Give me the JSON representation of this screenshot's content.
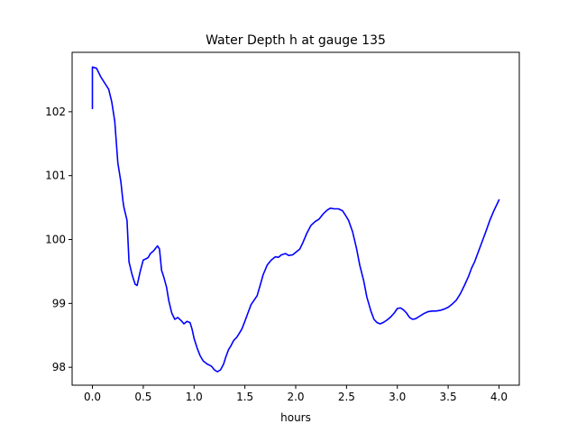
{
  "chart_data": {
    "type": "line",
    "title": "Water Depth h at gauge 135",
    "xlabel": "hours",
    "ylabel": "",
    "xlim": [
      -0.2,
      4.2
    ],
    "ylim": [
      97.72,
      102.93
    ],
    "xticks": [
      0.0,
      0.5,
      1.0,
      1.5,
      2.0,
      2.5,
      3.0,
      3.5,
      4.0
    ],
    "xtick_labels": [
      "0.0",
      "0.5",
      "1.0",
      "1.5",
      "2.0",
      "2.5",
      "3.0",
      "3.5",
      "4.0"
    ],
    "yticks": [
      98,
      99,
      100,
      101,
      102
    ],
    "ytick_labels": [
      "98",
      "99",
      "100",
      "101",
      "102"
    ],
    "grid": false,
    "series": [
      {
        "color": "#0000ff",
        "x": [
          0.0,
          0.0,
          0.04,
          0.08,
          0.12,
          0.16,
          0.19,
          0.22,
          0.25,
          0.28,
          0.3,
          0.31,
          0.34,
          0.36,
          0.39,
          0.42,
          0.44,
          0.47,
          0.5,
          0.53,
          0.55,
          0.57,
          0.6,
          0.64,
          0.66,
          0.68,
          0.7,
          0.73,
          0.75,
          0.78,
          0.81,
          0.84,
          0.88,
          0.9,
          0.93,
          0.96,
          0.98,
          1.0,
          1.03,
          1.06,
          1.09,
          1.13,
          1.17,
          1.2,
          1.23,
          1.26,
          1.29,
          1.31,
          1.34,
          1.36,
          1.39,
          1.42,
          1.44,
          1.47,
          1.5,
          1.53,
          1.56,
          1.59,
          1.62,
          1.65,
          1.68,
          1.72,
          1.76,
          1.8,
          1.83,
          1.86,
          1.9,
          1.93,
          1.97,
          2.0,
          2.04,
          2.07,
          2.11,
          2.15,
          2.19,
          2.23,
          2.27,
          2.31,
          2.34,
          2.38,
          2.42,
          2.46,
          2.49,
          2.52,
          2.56,
          2.6,
          2.63,
          2.67,
          2.7,
          2.74,
          2.77,
          2.8,
          2.83,
          2.86,
          2.89,
          2.93,
          2.97,
          3.0,
          3.03,
          3.06,
          3.09,
          3.12,
          3.15,
          3.18,
          3.22,
          3.26,
          3.3,
          3.34,
          3.38,
          3.42,
          3.46,
          3.5,
          3.54,
          3.58,
          3.62,
          3.66,
          3.7,
          3.73,
          3.76,
          3.79,
          3.83,
          3.87,
          3.91,
          3.95,
          4.0
        ],
        "y": [
          102.05,
          102.7,
          102.68,
          102.55,
          102.45,
          102.35,
          102.15,
          101.85,
          101.2,
          100.9,
          100.6,
          100.5,
          100.3,
          99.65,
          99.45,
          99.3,
          99.28,
          99.5,
          99.68,
          99.7,
          99.72,
          99.78,
          99.82,
          99.9,
          99.85,
          99.52,
          99.42,
          99.25,
          99.05,
          98.85,
          98.75,
          98.78,
          98.72,
          98.68,
          98.72,
          98.7,
          98.6,
          98.45,
          98.3,
          98.18,
          98.1,
          98.05,
          98.02,
          97.96,
          97.93,
          97.96,
          98.05,
          98.15,
          98.28,
          98.33,
          98.42,
          98.47,
          98.52,
          98.6,
          98.72,
          98.85,
          98.98,
          99.05,
          99.12,
          99.28,
          99.45,
          99.6,
          99.68,
          99.73,
          99.72,
          99.76,
          99.78,
          99.75,
          99.76,
          99.8,
          99.85,
          99.95,
          100.1,
          100.22,
          100.28,
          100.32,
          100.4,
          100.46,
          100.49,
          100.48,
          100.48,
          100.45,
          100.38,
          100.3,
          100.12,
          99.85,
          99.6,
          99.35,
          99.1,
          98.88,
          98.75,
          98.7,
          98.68,
          98.7,
          98.73,
          98.78,
          98.85,
          98.92,
          98.93,
          98.9,
          98.85,
          98.78,
          98.75,
          98.76,
          98.8,
          98.84,
          98.87,
          98.88,
          98.88,
          98.89,
          98.91,
          98.94,
          98.99,
          99.05,
          99.15,
          99.28,
          99.42,
          99.55,
          99.65,
          99.78,
          99.95,
          100.12,
          100.3,
          100.45,
          100.62
        ]
      }
    ]
  }
}
